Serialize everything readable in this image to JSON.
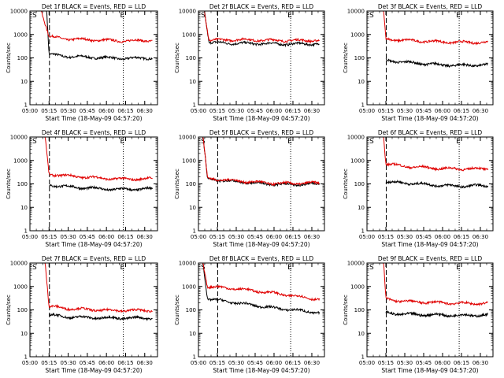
{
  "figure": {
    "ylabel": "Counts/sec",
    "xlabel": "Start Time (18-May-09 04:57:20)"
  },
  "chart_data": [
    {
      "type": "line",
      "title": "Det 1f BLACK = Events, RED = LLD",
      "ylabel": "Counts/sec",
      "xlabel": "Start Time (18-May-09 04:57:20)",
      "x_ticks": [
        "05:00",
        "05:15",
        "05:30",
        "05:45",
        "06:00",
        "06:15",
        "06:30"
      ],
      "y_ticks": [
        "1",
        "10",
        "100",
        "1000",
        "10000"
      ],
      "ylim": [
        1,
        10000
      ],
      "yscale": "log",
      "markers": [
        "S",
        "E"
      ],
      "series": [
        {
          "name": "BLACK = Events",
          "color": "#000000",
          "points": [
            [
              5.0,
              10000
            ],
            [
              5.22,
              10000
            ],
            [
              5.25,
              140
            ],
            [
              5.5,
              115
            ],
            [
              6.0,
              100
            ],
            [
              6.25,
              95
            ],
            [
              6.6,
              100
            ]
          ]
        },
        {
          "name": "RED = LLD",
          "color": "#e00000",
          "points": [
            [
              5.0,
              10000
            ],
            [
              5.15,
              10000
            ],
            [
              5.25,
              800
            ],
            [
              5.5,
              640
            ],
            [
              6.0,
              560
            ],
            [
              6.25,
              530
            ],
            [
              6.6,
              560
            ]
          ]
        }
      ]
    },
    {
      "type": "line",
      "title": "Det 2f BLACK = Events, RED = LLD",
      "ylabel": "Counts/sec",
      "xlabel": "Start Time (18-May-09 04:57:20)",
      "x_ticks": [
        "05:00",
        "05:15",
        "05:30",
        "05:45",
        "06:00",
        "06:15",
        "06:30"
      ],
      "y_ticks": [
        "1",
        "10",
        "100",
        "1000",
        "10000"
      ],
      "ylim": [
        1,
        10000
      ],
      "yscale": "log",
      "markers": [
        "S",
        "E"
      ],
      "series": [
        {
          "name": "BLACK = Events",
          "color": "#000000",
          "points": [
            [
              5.0,
              10000
            ],
            [
              5.08,
              10000
            ],
            [
              5.14,
              450
            ],
            [
              5.5,
              420
            ],
            [
              6.0,
              400
            ],
            [
              6.25,
              390
            ],
            [
              6.6,
              400
            ]
          ]
        },
        {
          "name": "RED = LLD",
          "color": "#e00000",
          "points": [
            [
              5.0,
              10000
            ],
            [
              5.08,
              10000
            ],
            [
              5.14,
              560
            ],
            [
              5.5,
              600
            ],
            [
              6.0,
              560
            ],
            [
              6.25,
              550
            ],
            [
              6.6,
              560
            ]
          ]
        }
      ]
    },
    {
      "type": "line",
      "title": "Det 3f BLACK = Events, RED = LLD",
      "ylabel": "Counts/sec",
      "xlabel": "Start Time (18-May-09 04:57:20)",
      "x_ticks": [
        "05:00",
        "05:15",
        "05:30",
        "05:45",
        "06:00",
        "06:15",
        "06:30"
      ],
      "y_ticks": [
        "1",
        "10",
        "100",
        "1000",
        "10000"
      ],
      "ylim": [
        1,
        10000
      ],
      "yscale": "log",
      "markers": [
        "S",
        "E"
      ],
      "series": [
        {
          "name": "BLACK = Events",
          "color": "#000000",
          "points": [
            [
              5.25,
              80
            ],
            [
              5.5,
              65
            ],
            [
              6.0,
              50
            ],
            [
              6.25,
              48
            ],
            [
              6.6,
              50
            ]
          ]
        },
        {
          "name": "RED = LLD",
          "color": "#e00000",
          "points": [
            [
              5.0,
              10000
            ],
            [
              5.22,
              10000
            ],
            [
              5.25,
              640
            ],
            [
              5.5,
              560
            ],
            [
              6.0,
              480
            ],
            [
              6.25,
              460
            ],
            [
              6.6,
              460
            ]
          ]
        }
      ]
    },
    {
      "type": "line",
      "title": "Det 4f BLACK = Events, RED = LLD",
      "ylabel": "Counts/sec",
      "xlabel": "Start Time (18-May-09 04:57:20)",
      "x_ticks": [
        "05:00",
        "05:15",
        "05:30",
        "05:45",
        "06:00",
        "06:15",
        "06:30"
      ],
      "y_ticks": [
        "1",
        "10",
        "100",
        "1000",
        "10000"
      ],
      "ylim": [
        1,
        10000
      ],
      "yscale": "log",
      "markers": [
        "S",
        "E"
      ],
      "series": [
        {
          "name": "BLACK = Events",
          "color": "#000000",
          "points": [
            [
              5.25,
              90
            ],
            [
              5.5,
              75
            ],
            [
              6.0,
              60
            ],
            [
              6.25,
              58
            ],
            [
              6.6,
              62
            ]
          ]
        },
        {
          "name": "RED = LLD",
          "color": "#e00000",
          "points": [
            [
              5.0,
              10000
            ],
            [
              5.2,
              10000
            ],
            [
              5.25,
              260
            ],
            [
              5.5,
              220
            ],
            [
              6.0,
              170
            ],
            [
              6.25,
              160
            ],
            [
              6.6,
              165
            ]
          ]
        }
      ]
    },
    {
      "type": "line",
      "title": "Det 5f BLACK = Events, RED = LLD",
      "ylabel": "Counts/sec",
      "xlabel": "Start Time (18-May-09 04:57:20)",
      "x_ticks": [
        "05:00",
        "05:15",
        "05:30",
        "05:45",
        "06:00",
        "06:15",
        "06:30"
      ],
      "y_ticks": [
        "1",
        "10",
        "100",
        "1000",
        "10000"
      ],
      "ylim": [
        1,
        10000
      ],
      "yscale": "log",
      "markers": [
        "S",
        "E"
      ],
      "series": [
        {
          "name": "BLACK = Events",
          "color": "#000000",
          "points": [
            [
              5.0,
              10000
            ],
            [
              5.06,
              10000
            ],
            [
              5.12,
              160
            ],
            [
              5.5,
              125
            ],
            [
              6.0,
              95
            ],
            [
              6.25,
              95
            ],
            [
              6.6,
              100
            ]
          ]
        },
        {
          "name": "RED = LLD",
          "color": "#e00000",
          "points": [
            [
              5.0,
              10000
            ],
            [
              5.06,
              10000
            ],
            [
              5.12,
              170
            ],
            [
              5.5,
              135
            ],
            [
              6.0,
              105
            ],
            [
              6.25,
              105
            ],
            [
              6.6,
              110
            ]
          ]
        }
      ]
    },
    {
      "type": "line",
      "title": "Det 6f BLACK = Events, RED = LLD",
      "ylabel": "Counts/sec",
      "xlabel": "Start Time (18-May-09 04:57:20)",
      "x_ticks": [
        "05:00",
        "05:15",
        "05:30",
        "05:45",
        "06:00",
        "06:15",
        "06:30"
      ],
      "y_ticks": [
        "1",
        "10",
        "100",
        "1000",
        "10000"
      ],
      "ylim": [
        1,
        10000
      ],
      "yscale": "log",
      "markers": [
        "S",
        "E"
      ],
      "series": [
        {
          "name": "BLACK = Events",
          "color": "#000000",
          "points": [
            [
              5.25,
              120
            ],
            [
              5.5,
              110
            ],
            [
              6.0,
              85
            ],
            [
              6.25,
              80
            ],
            [
              6.6,
              85
            ]
          ]
        },
        {
          "name": "RED = LLD",
          "color": "#e00000",
          "points": [
            [
              5.0,
              10000
            ],
            [
              5.22,
              10000
            ],
            [
              5.25,
              720
            ],
            [
              5.5,
              560
            ],
            [
              6.0,
              450
            ],
            [
              6.25,
              440
            ],
            [
              6.6,
              440
            ]
          ]
        }
      ]
    },
    {
      "type": "line",
      "title": "Det 7f BLACK = Events, RED = LLD",
      "ylabel": "Counts/sec",
      "xlabel": "Start Time (18-May-09 04:57:20)",
      "x_ticks": [
        "05:00",
        "05:15",
        "05:30",
        "05:45",
        "06:00",
        "06:15",
        "06:30"
      ],
      "y_ticks": [
        "1",
        "10",
        "100",
        "1000",
        "10000"
      ],
      "ylim": [
        1,
        10000
      ],
      "yscale": "log",
      "markers": [
        "S",
        "E"
      ],
      "series": [
        {
          "name": "BLACK = Events",
          "color": "#000000",
          "points": [
            [
              5.25,
              60
            ],
            [
              5.5,
              50
            ],
            [
              6.0,
              45
            ],
            [
              6.25,
              45
            ],
            [
              6.6,
              45
            ]
          ]
        },
        {
          "name": "RED = LLD",
          "color": "#e00000",
          "points": [
            [
              5.0,
              10000
            ],
            [
              5.2,
              10000
            ],
            [
              5.25,
              140
            ],
            [
              5.5,
              115
            ],
            [
              6.0,
              95
            ],
            [
              6.25,
              95
            ],
            [
              6.6,
              95
            ]
          ]
        }
      ]
    },
    {
      "type": "line",
      "title": "Det 8f BLACK = Events, RED = LLD",
      "ylabel": "Counts/sec",
      "xlabel": "Start Time (18-May-09 04:57:20)",
      "x_ticks": [
        "05:00",
        "05:15",
        "05:30",
        "05:45",
        "06:00",
        "06:15",
        "06:30"
      ],
      "y_ticks": [
        "1",
        "10",
        "100",
        "1000",
        "10000"
      ],
      "ylim": [
        1,
        10000
      ],
      "yscale": "log",
      "markers": [
        "S",
        "E"
      ],
      "series": [
        {
          "name": "BLACK = Events",
          "color": "#000000",
          "points": [
            [
              5.0,
              10000
            ],
            [
              5.06,
              10000
            ],
            [
              5.12,
              300
            ],
            [
              5.5,
              200
            ],
            [
              6.0,
              120
            ],
            [
              6.25,
              100
            ],
            [
              6.6,
              75
            ]
          ]
        },
        {
          "name": "RED = LLD",
          "color": "#e00000",
          "points": [
            [
              5.0,
              10000
            ],
            [
              5.06,
              10000
            ],
            [
              5.12,
              1000
            ],
            [
              5.5,
              800
            ],
            [
              6.0,
              520
            ],
            [
              6.25,
              400
            ],
            [
              6.6,
              280
            ]
          ]
        }
      ]
    },
    {
      "type": "line",
      "title": "Det 9f BLACK = Events, RED = LLD",
      "ylabel": "Counts/sec",
      "xlabel": "Start Time (18-May-09 04:57:20)",
      "x_ticks": [
        "05:00",
        "05:15",
        "05:30",
        "05:45",
        "06:00",
        "06:15",
        "06:30"
      ],
      "y_ticks": [
        "1",
        "10",
        "100",
        "1000",
        "10000"
      ],
      "ylim": [
        1,
        10000
      ],
      "yscale": "log",
      "markers": [
        "S",
        "E"
      ],
      "series": [
        {
          "name": "BLACK = Events",
          "color": "#000000",
          "points": [
            [
              5.25,
              75
            ],
            [
              5.5,
              65
            ],
            [
              6.0,
              60
            ],
            [
              6.25,
              58
            ],
            [
              6.6,
              60
            ]
          ]
        },
        {
          "name": "RED = LLD",
          "color": "#e00000",
          "points": [
            [
              5.0,
              10000
            ],
            [
              5.22,
              10000
            ],
            [
              5.25,
              290
            ],
            [
              5.5,
              230
            ],
            [
              6.0,
              200
            ],
            [
              6.25,
              190
            ],
            [
              6.6,
              190
            ]
          ]
        }
      ]
    }
  ]
}
